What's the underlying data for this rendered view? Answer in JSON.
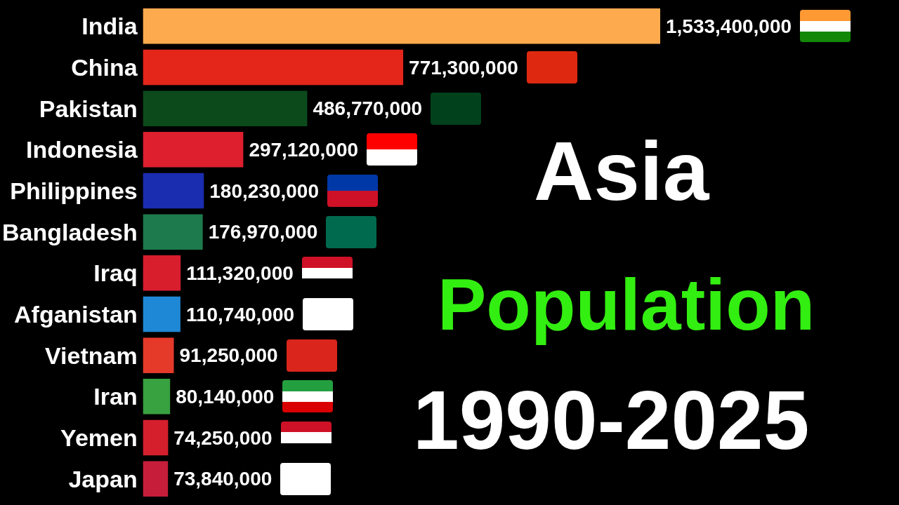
{
  "chart_data": {
    "type": "bar",
    "orientation": "horizontal",
    "title": "Asia",
    "subtitle": "Population",
    "annotations": [
      "1990-2025"
    ],
    "categories": [
      "India",
      "China",
      "Pakistan",
      "Indonesia",
      "Philippines",
      "Bangladesh",
      "Iraq",
      "Afganistan",
      "Vietnam",
      "Iran",
      "Yemen",
      "Japan"
    ],
    "values": [
      1533400000,
      771300000,
      486770000,
      297120000,
      180230000,
      176970000,
      111320000,
      110740000,
      91250000,
      80140000,
      74250000,
      73840000
    ],
    "value_labels": [
      "1,533,400,000",
      "771,300,000",
      "486,770,000",
      "297,120,000",
      "180,230,000",
      "176,970,000",
      "111,320,000",
      "110,740,000",
      "91,250,000",
      "80,140,000",
      "74,250,000",
      "73,840,000"
    ],
    "colors": [
      "#fdaa4e",
      "#e4251a",
      "#0c4a1c",
      "#dd1f2e",
      "#1a2db0",
      "#1d7a4d",
      "#d81d2d",
      "#1f88d6",
      "#e5392a",
      "#38a140",
      "#d51f2d",
      "#c61e3a"
    ]
  }
}
